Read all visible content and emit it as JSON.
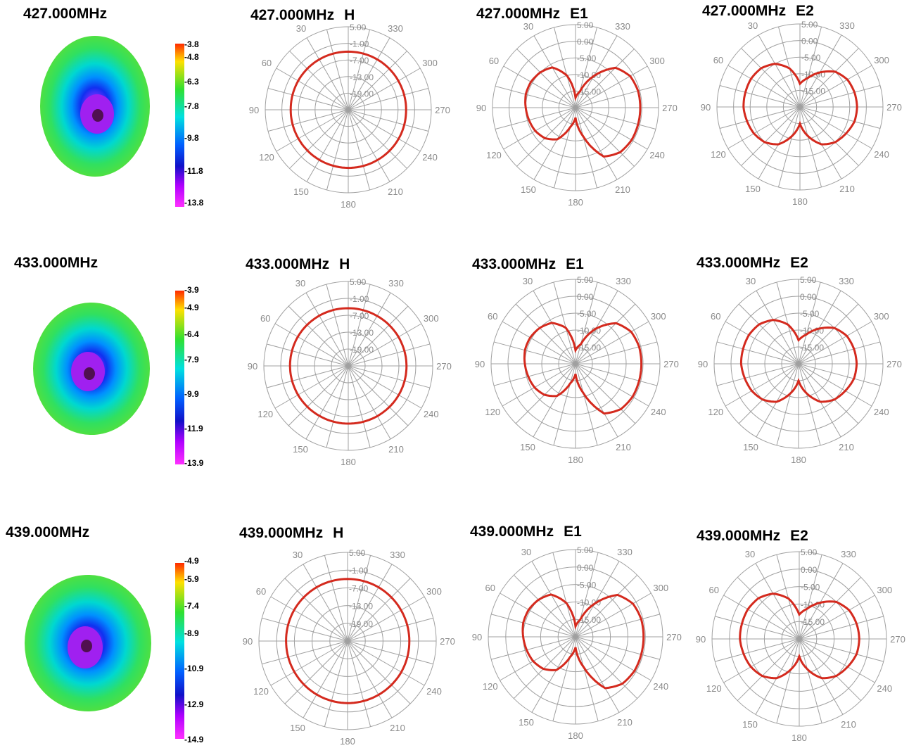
{
  "colors": {
    "pattern": "#d42a1e",
    "grid": "#a0a0a0",
    "label": "#8a8a8a",
    "colormap": [
      "#ff2a00",
      "#ffe000",
      "#30e030",
      "#00e0e0",
      "#0060ff",
      "#1010c8",
      "#b000ff",
      "#ff30ff"
    ]
  },
  "polar_axis": {
    "angle_labels": [
      "30",
      "330",
      "60",
      "300",
      "90",
      "270",
      "120",
      "240",
      "150",
      "210",
      "180"
    ],
    "angle_values": [
      30,
      330,
      60,
      300,
      90,
      270,
      120,
      240,
      150,
      210,
      180
    ]
  },
  "rows": [
    {
      "freq": "427.000MHz",
      "colorbar": [
        "-3.8",
        "-4.8",
        "-6.3",
        "-7.8",
        "-9.8",
        "-11.8",
        "-13.8"
      ],
      "polars": [
        {
          "title": "427.000MHz",
          "pol": "H",
          "radial_labels": [
            "5.00",
            "-1.00",
            "-7.00",
            "-13.00",
            "-19.00"
          ]
        },
        {
          "title": "427.000MHz",
          "pol": "E1",
          "radial_labels": [
            "5.00",
            "0.00",
            "-5.00",
            "-10.00",
            "-15.00"
          ]
        },
        {
          "title": "427.000MHz",
          "pol": "E2",
          "radial_labels": [
            "5.00",
            "0.00",
            "-5.00",
            "-10.00",
            "-15.00"
          ]
        }
      ]
    },
    {
      "freq": "433.000MHz",
      "colorbar": [
        "-3.9",
        "-4.9",
        "-6.4",
        "-7.9",
        "-9.9",
        "-11.9",
        "-13.9"
      ],
      "polars": [
        {
          "title": "433.000MHz",
          "pol": "H",
          "radial_labels": [
            "5.00",
            "-1.00",
            "-7.00",
            "-13.00",
            "-19.00"
          ]
        },
        {
          "title": "433.000MHz",
          "pol": "E1",
          "radial_labels": [
            "5.00",
            "0.00",
            "-5.00",
            "-10.00",
            "-15.00"
          ]
        },
        {
          "title": "433.000MHz",
          "pol": "E2",
          "radial_labels": [
            "5.00",
            "0.00",
            "-5.00",
            "-10.00",
            "-15.00"
          ]
        }
      ]
    },
    {
      "freq": "439.000MHz",
      "colorbar": [
        "-4.9",
        "-5.9",
        "-7.4",
        "-8.9",
        "-10.9",
        "-12.9",
        "-14.9"
      ],
      "polars": [
        {
          "title": "439.000MHz",
          "pol": "H",
          "radial_labels": [
            "5.00",
            "-1.00",
            "-7.00",
            "-13.00",
            "-19.00"
          ]
        },
        {
          "title": "439.000MHz",
          "pol": "E1",
          "radial_labels": [
            "5.00",
            "0.00",
            "-5.00",
            "-10.00",
            "-15.00"
          ]
        },
        {
          "title": "439.000MHz",
          "pol": "E2",
          "radial_labels": [
            "5.00",
            "0.00",
            "-5.00",
            "-10.00",
            "-15.00"
          ]
        }
      ]
    }
  ],
  "chart_data": [
    {
      "type": "heatmap",
      "title": "427.000MHz",
      "colorbar_ticks": [
        -3.8,
        -4.8,
        -6.3,
        -7.8,
        -9.8,
        -11.8,
        -13.8
      ],
      "range": [
        -13.8,
        -3.8
      ]
    },
    {
      "type": "heatmap",
      "title": "433.000MHz",
      "colorbar_ticks": [
        -3.9,
        -4.9,
        -6.4,
        -7.9,
        -9.9,
        -11.9,
        -13.9
      ],
      "range": [
        -13.9,
        -3.9
      ]
    },
    {
      "type": "heatmap",
      "title": "439.000MHz",
      "colorbar_ticks": [
        -4.9,
        -5.9,
        -7.4,
        -8.9,
        -10.9,
        -12.9,
        -14.9
      ],
      "range": [
        -14.9,
        -4.9
      ]
    },
    {
      "type": "polar",
      "title": "427.000MHz H",
      "r_range": [
        -25,
        5
      ],
      "series": [
        {
          "angle_deg": [
            0,
            30,
            60,
            90,
            120,
            150,
            180,
            210,
            240,
            270,
            300,
            330,
            360
          ],
          "values_db": [
            -4.0,
            -4.0,
            -4.1,
            -4.2,
            -4.2,
            -4.1,
            -4.0,
            -4.0,
            -4.0,
            -4.1,
            -4.1,
            -4.0,
            -4.0
          ]
        }
      ]
    },
    {
      "type": "polar",
      "title": "427.000MHz E1",
      "r_range": [
        -20,
        5
      ],
      "series": [
        {
          "angle_deg": [
            0,
            15,
            30,
            45,
            60,
            75,
            90,
            105,
            120,
            135,
            150,
            165,
            180,
            195,
            210,
            225,
            240,
            255,
            270,
            285,
            300,
            315,
            330,
            345,
            360
          ],
          "values_db": [
            -17,
            -10,
            -6,
            -5,
            -4.5,
            -4.5,
            -5,
            -5.5,
            -6,
            -7,
            -9,
            -14,
            -17,
            -11,
            -3,
            -1,
            -0.5,
            -0.5,
            -0.5,
            -0.5,
            -1,
            -3,
            -9,
            -15,
            -17
          ]
        }
      ]
    },
    {
      "type": "polar",
      "title": "427.000MHz E2",
      "r_range": [
        -20,
        5
      ],
      "series": [
        {
          "angle_deg": [
            0,
            15,
            30,
            45,
            60,
            75,
            90,
            105,
            120,
            135,
            150,
            165,
            180,
            195,
            210,
            225,
            240,
            255,
            270,
            285,
            300,
            315,
            330,
            345,
            360
          ],
          "values_db": [
            -13,
            -8,
            -5,
            -3.5,
            -3,
            -3,
            -3,
            -3.5,
            -4,
            -5,
            -7,
            -11,
            -15,
            -11,
            -7,
            -5,
            -4,
            -3,
            -2.8,
            -3,
            -3.5,
            -5,
            -8,
            -11,
            -13
          ]
        }
      ]
    },
    {
      "type": "polar",
      "title": "433.000MHz H",
      "r_range": [
        -25,
        5
      ],
      "series": [
        {
          "angle_deg": [
            0,
            30,
            60,
            90,
            120,
            150,
            180,
            210,
            240,
            270,
            300,
            330,
            360
          ],
          "values_db": [
            -4.5,
            -4.4,
            -4.3,
            -4.3,
            -4.4,
            -4.5,
            -4.5,
            -4.4,
            -4.3,
            -4.3,
            -4.4,
            -4.5,
            -4.5
          ]
        }
      ]
    },
    {
      "type": "polar",
      "title": "433.000MHz E1",
      "r_range": [
        -20,
        5
      ],
      "series": [
        {
          "angle_deg": [
            0,
            15,
            30,
            45,
            60,
            75,
            90,
            105,
            120,
            135,
            150,
            165,
            180,
            195,
            210,
            225,
            240,
            255,
            270,
            285,
            300,
            315,
            330,
            345,
            360
          ],
          "values_db": [
            -16,
            -9,
            -6,
            -5,
            -4.5,
            -4.5,
            -5,
            -5.5,
            -6,
            -7,
            -9,
            -14,
            -17,
            -11,
            -3,
            -1,
            -0.5,
            -0.5,
            -0.5,
            -0.5,
            -1,
            -3,
            -8,
            -14,
            -16
          ]
        }
      ]
    },
    {
      "type": "polar",
      "title": "433.000MHz E2",
      "r_range": [
        -20,
        5
      ],
      "series": [
        {
          "angle_deg": [
            0,
            15,
            30,
            45,
            60,
            75,
            90,
            105,
            120,
            135,
            150,
            165,
            180,
            195,
            210,
            225,
            240,
            255,
            270,
            285,
            300,
            315,
            330,
            345,
            360
          ],
          "values_db": [
            -13,
            -8,
            -5,
            -3.5,
            -3,
            -3,
            -3,
            -3.5,
            -4,
            -5,
            -7,
            -11,
            -15,
            -11,
            -7,
            -5,
            -4,
            -3,
            -2.8,
            -3,
            -3.5,
            -5,
            -8,
            -11,
            -13
          ]
        }
      ]
    },
    {
      "type": "polar",
      "title": "439.000MHz H",
      "r_range": [
        -25,
        5
      ],
      "series": [
        {
          "angle_deg": [
            0,
            30,
            60,
            90,
            120,
            150,
            180,
            210,
            240,
            270,
            300,
            330,
            360
          ],
          "values_db": [
            -4.0,
            -4.0,
            -4.1,
            -4.2,
            -4.2,
            -4.1,
            -4.0,
            -4.0,
            -4.0,
            -4.1,
            -4.1,
            -4.0,
            -4.0
          ]
        }
      ]
    },
    {
      "type": "polar",
      "title": "439.000MHz E1",
      "r_range": [
        -20,
        5
      ],
      "series": [
        {
          "angle_deg": [
            0,
            15,
            30,
            45,
            60,
            75,
            90,
            105,
            120,
            135,
            150,
            165,
            180,
            195,
            210,
            225,
            240,
            255,
            270,
            285,
            300,
            315,
            330,
            345,
            360
          ],
          "values_db": [
            -17,
            -10,
            -6,
            -5,
            -4.5,
            -4.5,
            -5,
            -5.5,
            -6,
            -7,
            -9,
            -14,
            -17,
            -11,
            -3,
            -1,
            -0.5,
            -0.5,
            -0.5,
            -0.5,
            -1,
            -3,
            -9,
            -15,
            -17
          ]
        }
      ]
    },
    {
      "type": "polar",
      "title": "439.000MHz E2",
      "r_range": [
        -20,
        5
      ],
      "series": [
        {
          "angle_deg": [
            0,
            15,
            30,
            45,
            60,
            75,
            90,
            105,
            120,
            135,
            150,
            165,
            180,
            195,
            210,
            225,
            240,
            255,
            270,
            285,
            300,
            315,
            330,
            345,
            360
          ],
          "values_db": [
            -13,
            -8,
            -5,
            -3.5,
            -3,
            -3,
            -3,
            -3.5,
            -4,
            -5,
            -7,
            -11,
            -15,
            -11,
            -7,
            -5,
            -4,
            -3,
            -2.8,
            -3,
            -3.5,
            -5,
            -8,
            -11,
            -13
          ]
        }
      ]
    }
  ]
}
